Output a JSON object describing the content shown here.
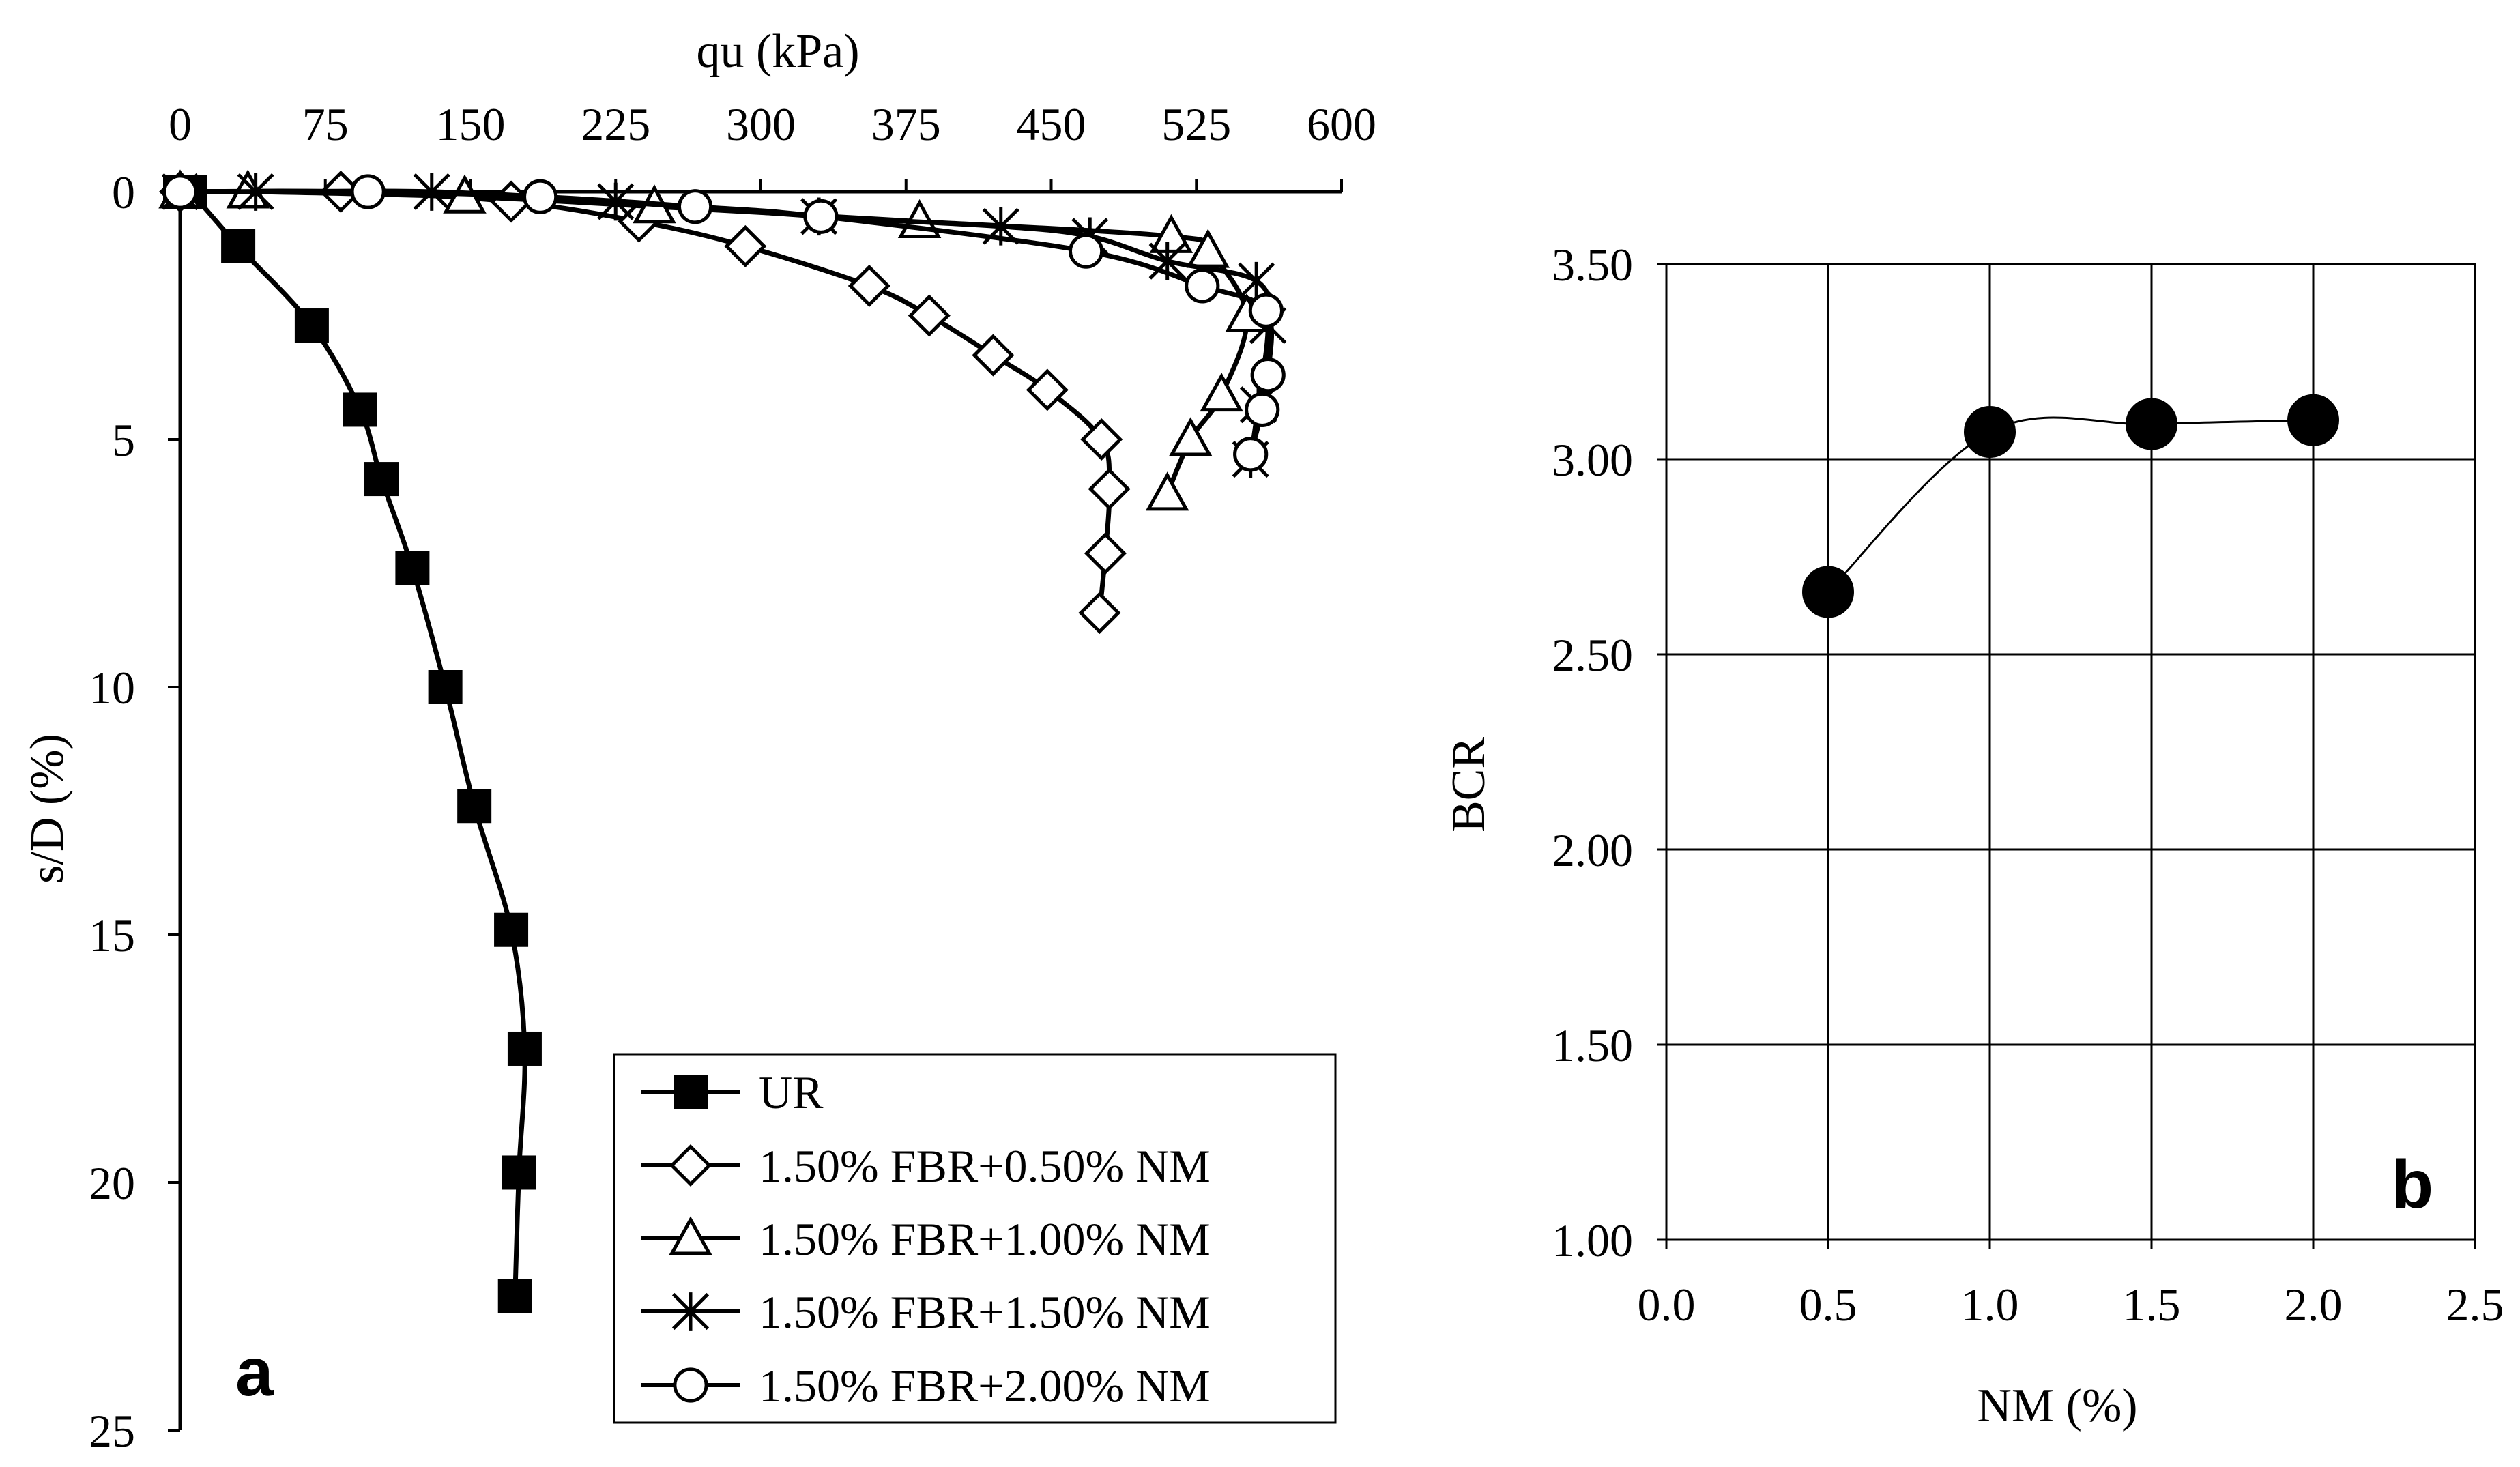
{
  "chart_data": [
    {
      "panel": "a",
      "type": "line",
      "xlabel": "qu (kPa)",
      "ylabel": "s/D (%)",
      "xlim": [
        0,
        600
      ],
      "ylim": [
        0,
        25
      ],
      "y_inverted": true,
      "x_axis_position": "top",
      "xticks": [
        "0",
        "75",
        "150",
        "225",
        "300",
        "375",
        "450",
        "525",
        "600"
      ],
      "yticks": [
        "0",
        "5",
        "10",
        "15",
        "20",
        "25"
      ],
      "legend_position": "bottom-right",
      "series": [
        {
          "name": "UR",
          "marker": "filled-square",
          "x": [
            0,
            5,
            30,
            68,
            93,
            104,
            120,
            137,
            152,
            171,
            178,
            175,
            173
          ],
          "y": [
            0,
            0,
            1.1,
            2.7,
            4.4,
            5.8,
            7.6,
            10.0,
            12.4,
            14.9,
            17.3,
            19.8,
            22.3
          ]
        },
        {
          "name": "1.50% FBR+0.50% NM",
          "marker": "open-diamond",
          "x": [
            0,
            83,
            171,
            237,
            292,
            356,
            387,
            420,
            448,
            476,
            480,
            478,
            475
          ],
          "y": [
            0,
            0,
            0.2,
            0.6,
            1.1,
            1.9,
            2.5,
            3.3,
            4.0,
            5.0,
            6.0,
            7.3,
            8.5
          ]
        },
        {
          "name": "1.50% FBR+1.00% NM",
          "marker": "open-triangle",
          "x": [
            0,
            35,
            147,
            245,
            382,
            512,
            531,
            551,
            538,
            522,
            510
          ],
          "y": [
            0,
            0,
            0.1,
            0.3,
            0.6,
            0.9,
            1.2,
            2.5,
            4.1,
            5.0,
            6.1
          ]
        },
        {
          "name": "1.50% FBR+1.50% NM",
          "marker": "asterisk",
          "x": [
            0,
            39,
            130,
            225,
            330,
            424,
            470,
            510,
            556,
            562,
            557,
            553
          ],
          "y": [
            0,
            0,
            0,
            0.2,
            0.5,
            0.7,
            0.9,
            1.4,
            1.8,
            2.7,
            4.3,
            5.4
          ]
        },
        {
          "name": "1.50% FBR+2.00% NM",
          "marker": "open-circle",
          "x": [
            0,
            97,
            186,
            266,
            331,
            468,
            528,
            561,
            562,
            559,
            553
          ],
          "y": [
            0,
            0,
            0.1,
            0.3,
            0.5,
            1.2,
            1.9,
            2.4,
            3.7,
            4.4,
            5.3
          ]
        }
      ],
      "annotation": "a"
    },
    {
      "panel": "b",
      "type": "scatter",
      "xlabel": "NM (%)",
      "ylabel": "BCR",
      "xlim": [
        0.0,
        2.5
      ],
      "ylim": [
        1.0,
        3.5
      ],
      "xticks": [
        "0.0",
        "0.5",
        "1.0",
        "1.5",
        "2.0",
        "2.5"
      ],
      "yticks": [
        "1.00",
        "1.50",
        "2.00",
        "2.50",
        "3.00",
        "3.50"
      ],
      "grid": true,
      "smooth_line": true,
      "x": [
        0.5,
        1.0,
        1.5,
        2.0
      ],
      "values": [
        2.66,
        3.07,
        3.09,
        3.1
      ],
      "annotation": "b"
    }
  ]
}
